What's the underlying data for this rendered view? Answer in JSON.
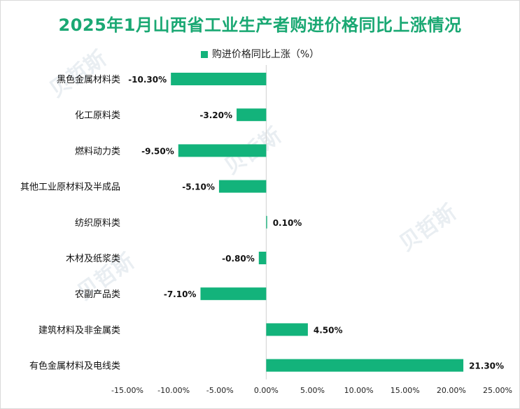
{
  "chart_data": {
    "type": "bar",
    "orientation": "horizontal",
    "title": "2025年1月山西省工业生产者购进价格同比上涨情况",
    "legend": "购进价格同比上涨（%）",
    "categories": [
      "黑色金属材料类",
      "化工原料类",
      "燃料动力类",
      "其他工业原材料及半成品",
      "纺织原料类",
      "木材及纸浆类",
      "农副产品类",
      "建筑材料及非金属类",
      "有色金属材料及电线类"
    ],
    "values": [
      -10.3,
      -3.2,
      -9.5,
      -5.1,
      0.1,
      -0.8,
      -7.1,
      4.5,
      21.3
    ],
    "value_labels": [
      "-10.30%",
      "-3.20%",
      "-9.50%",
      "-5.10%",
      "0.10%",
      "-0.80%",
      "-7.10%",
      "4.50%",
      "21.30%"
    ],
    "xlim": [
      -15,
      25
    ],
    "xticks": [
      -15,
      -10,
      -5,
      0,
      5,
      10,
      15,
      20,
      25
    ],
    "xtick_labels": [
      "-15.00%",
      "-10.00%",
      "-5.00%",
      "0.00%",
      "5.00%",
      "10.00%",
      "15.00%",
      "20.00%",
      "25.00%"
    ],
    "grid": false,
    "legend_position": "top",
    "bar_color": "#13b37b"
  }
}
